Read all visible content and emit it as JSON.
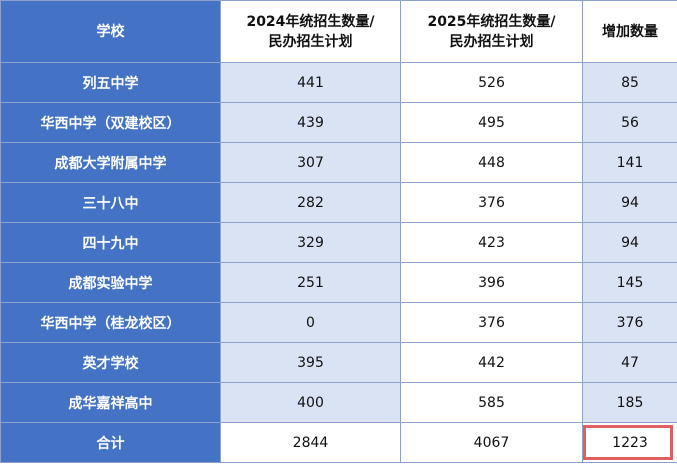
{
  "table": {
    "headers": {
      "school": "学校",
      "y2024_line1": "2024年统招生数量/",
      "y2024_line2": "民办招生计划",
      "y2025_line1": "2025年统招生数量/",
      "y2025_line2": "民办招生计划",
      "increase": "增加数量"
    },
    "rows": [
      {
        "school": "列五中学",
        "y2024": "441",
        "y2025": "526",
        "increase": "85"
      },
      {
        "school": "华西中学（双建校区）",
        "y2024": "439",
        "y2025": "495",
        "increase": "56"
      },
      {
        "school": "成都大学附属中学",
        "y2024": "307",
        "y2025": "448",
        "increase": "141"
      },
      {
        "school": "三十八中",
        "y2024": "282",
        "y2025": "376",
        "increase": "94"
      },
      {
        "school": "四十九中",
        "y2024": "329",
        "y2025": "423",
        "increase": "94"
      },
      {
        "school": "成都实验中学",
        "y2024": "251",
        "y2025": "396",
        "increase": "145"
      },
      {
        "school": "华西中学（桂龙校区）",
        "y2024": "0",
        "y2025": "376",
        "increase": "376"
      },
      {
        "school": "英才学校",
        "y2024": "395",
        "y2025": "442",
        "increase": "47"
      },
      {
        "school": "成华嘉祥高中",
        "y2024": "400",
        "y2025": "585",
        "increase": "185"
      }
    ],
    "total": {
      "label": "合计",
      "y2024": "2844",
      "y2025": "4067",
      "increase": "1223"
    }
  },
  "colors": {
    "header_blue": "#4472c4",
    "light_blue": "#dae3f3",
    "highlight_red": "#e06060"
  }
}
